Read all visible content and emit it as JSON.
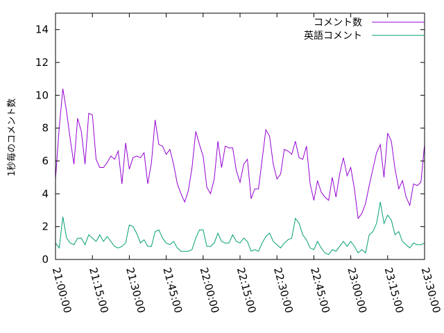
{
  "chart_data": {
    "type": "line",
    "ylabel": "1秒毎のコメント数",
    "xlabel": "",
    "ylim": [
      0,
      15
    ],
    "yticks": [
      0,
      2,
      4,
      6,
      8,
      10,
      12,
      14
    ],
    "xlim": [
      "21:00:00",
      "23:30:00"
    ],
    "xticks": [
      "21:00:00",
      "21:15:00",
      "21:30:00",
      "21:45:00",
      "22:00:00",
      "22:15:00",
      "22:30:00",
      "22:45:00",
      "23:00:00",
      "23:15:00",
      "23:30:00"
    ],
    "grid": false,
    "legend_position": "top-right",
    "x": [
      "21:00:00",
      "21:01:30",
      "21:03:00",
      "21:04:30",
      "21:06:00",
      "21:07:30",
      "21:09:00",
      "21:10:30",
      "21:12:00",
      "21:13:30",
      "21:15:00",
      "21:16:30",
      "21:18:00",
      "21:19:30",
      "21:21:00",
      "21:22:30",
      "21:24:00",
      "21:25:30",
      "21:27:00",
      "21:28:30",
      "21:30:00",
      "21:31:30",
      "21:33:00",
      "21:34:30",
      "21:36:00",
      "21:37:30",
      "21:39:00",
      "21:40:30",
      "21:42:00",
      "21:43:30",
      "21:45:00",
      "21:46:30",
      "21:48:00",
      "21:49:30",
      "21:51:00",
      "21:52:30",
      "21:54:00",
      "21:55:30",
      "21:57:00",
      "21:58:30",
      "22:00:00",
      "22:01:30",
      "22:03:00",
      "22:04:30",
      "22:06:00",
      "22:07:30",
      "22:09:00",
      "22:10:30",
      "22:12:00",
      "22:13:30",
      "22:15:00",
      "22:16:30",
      "22:18:00",
      "22:19:30",
      "22:21:00",
      "22:22:30",
      "22:24:00",
      "22:25:30",
      "22:27:00",
      "22:28:30",
      "22:30:00",
      "22:31:30",
      "22:33:00",
      "22:34:30",
      "22:36:00",
      "22:37:30",
      "22:39:00",
      "22:40:30",
      "22:42:00",
      "22:43:30",
      "22:45:00",
      "22:46:30",
      "22:48:00",
      "22:49:30",
      "22:51:00",
      "22:52:30",
      "22:54:00",
      "22:55:30",
      "22:57:00",
      "22:58:30",
      "23:00:00",
      "23:01:30",
      "23:03:00",
      "23:04:30",
      "23:06:00",
      "23:07:30",
      "23:09:00",
      "23:10:30",
      "23:12:00",
      "23:13:30",
      "23:15:00",
      "23:16:30",
      "23:18:00",
      "23:19:30",
      "23:21:00",
      "23:22:30",
      "23:24:00",
      "23:25:30",
      "23:27:00",
      "23:28:30",
      "23:30:00"
    ],
    "series": [
      {
        "name": "コメント数",
        "color": "#9400d3",
        "values": [
          4.9,
          8.0,
          10.4,
          9.0,
          7.3,
          5.8,
          8.6,
          7.8,
          5.8,
          8.9,
          8.8,
          6.1,
          5.6,
          5.6,
          5.9,
          6.3,
          6.1,
          6.6,
          4.6,
          7.1,
          5.5,
          6.2,
          6.3,
          6.2,
          6.5,
          4.6,
          5.9,
          8.5,
          7.0,
          6.9,
          6.4,
          6.7,
          5.8,
          4.6,
          4.0,
          3.5,
          4.2,
          5.6,
          7.8,
          7.0,
          6.3,
          4.4,
          4.0,
          4.9,
          7.2,
          5.6,
          6.9,
          6.8,
          6.8,
          5.4,
          4.7,
          5.8,
          6.1,
          3.7,
          4.3,
          4.3,
          6.1,
          7.9,
          7.5,
          5.8,
          4.9,
          5.2,
          6.7,
          6.6,
          6.4,
          7.2,
          6.2,
          6.1,
          6.9,
          4.6,
          3.6,
          4.8,
          4.1,
          3.8,
          3.6,
          5.0,
          3.8,
          5.2,
          6.2,
          5.1,
          5.6,
          4.3,
          2.5,
          2.8,
          3.4,
          4.5,
          5.5,
          6.5,
          7.0,
          5.0,
          7.7,
          7.2,
          5.5,
          4.3,
          4.8,
          3.8,
          3.3,
          4.6,
          4.5,
          4.7,
          7.0
        ]
      },
      {
        "name": "英語コメント",
        "color": "#009e73",
        "values": [
          1.0,
          0.7,
          2.6,
          1.3,
          1.0,
          0.9,
          1.3,
          1.3,
          0.9,
          1.5,
          1.3,
          1.1,
          1.5,
          1.1,
          1.4,
          1.1,
          0.8,
          0.7,
          0.8,
          1.0,
          2.1,
          2.0,
          1.6,
          1.0,
          1.2,
          0.8,
          0.8,
          1.7,
          1.8,
          1.3,
          1.0,
          0.9,
          1.1,
          0.7,
          0.5,
          0.5,
          0.5,
          0.6,
          1.3,
          1.8,
          1.8,
          0.8,
          0.8,
          1.0,
          1.6,
          1.1,
          1.0,
          1.0,
          1.5,
          1.1,
          1.0,
          1.3,
          1.1,
          0.5,
          0.6,
          0.5,
          1.0,
          1.4,
          1.6,
          1.1,
          0.9,
          0.7,
          1.0,
          1.2,
          1.3,
          2.5,
          2.2,
          1.5,
          1.2,
          0.7,
          0.6,
          1.1,
          0.7,
          0.4,
          0.3,
          0.6,
          0.5,
          0.8,
          1.1,
          0.8,
          1.1,
          0.8,
          0.4,
          0.6,
          0.4,
          1.5,
          1.7,
          2.2,
          3.5,
          2.2,
          2.7,
          2.4,
          1.5,
          1.7,
          1.1,
          0.9,
          0.7,
          1.0,
          0.9,
          0.9,
          1.0
        ]
      }
    ]
  }
}
